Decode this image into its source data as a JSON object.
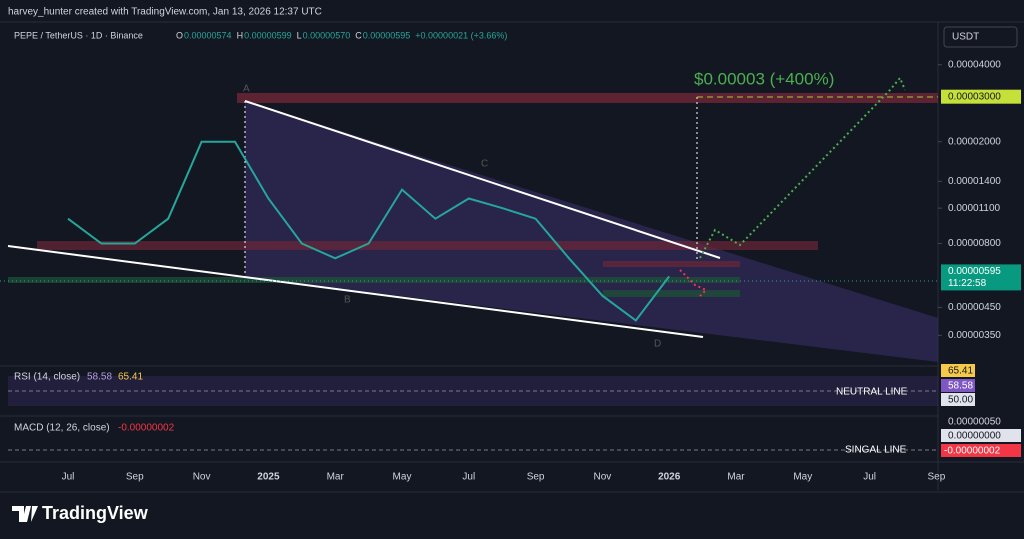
{
  "header": "harvey_hunter created with TradingView.com, Jan 13, 2026 12:37 UTC",
  "symbol": "PEPE / TetherUS · 1D · Binance",
  "ohlc": [
    {
      "key": "O",
      "value": "0.00000574"
    },
    {
      "key": "H",
      "value": "0.00000599"
    },
    {
      "key": "L",
      "value": "0.00000570"
    },
    {
      "key": "C",
      "value": "0.00000595"
    }
  ],
  "change": "+0.00000021 (+3.66%)",
  "currency_button": "USDT",
  "annotations": {
    "target_text": "$0.00003 (+400%)",
    "points": [
      "A",
      "B",
      "C",
      "D"
    ]
  },
  "chart_data": {
    "type": "line",
    "log_scale": true,
    "color": "#26a69a",
    "categories": [
      "Jul",
      null,
      "Sep",
      null,
      "Nov",
      null,
      "2025",
      null,
      "Mar",
      null,
      "May",
      null,
      "Jul",
      null,
      "Sep",
      null,
      "Nov",
      null,
      "2026",
      null,
      "Mar",
      null,
      "May",
      null,
      "Jul",
      null,
      "Sep"
    ],
    "values": [
      1e-05,
      8e-06,
      8e-06,
      1e-05,
      2e-05,
      2e-05,
      1.2e-05,
      8e-06,
      7e-06,
      8e-06,
      1.3e-05,
      1e-05,
      1.2e-05,
      1.1e-05,
      1e-05,
      7e-06,
      5e-06,
      4e-06,
      5.95e-06,
      null,
      null,
      null,
      null,
      null,
      null,
      null,
      null
    ],
    "ylim": [
      2.68e-06,
      5.72e-05
    ],
    "yticks": [
      {
        "value": 4e-05,
        "label": "0.00004000"
      },
      {
        "value": 2e-05,
        "label": "0.00002000"
      },
      {
        "value": 1.4e-05,
        "label": "0.00001400"
      },
      {
        "value": 1.1e-05,
        "label": "0.00001100"
      },
      {
        "value": 8e-06,
        "label": "0.00000800"
      },
      {
        "value": 4.5e-06,
        "label": "0.00000450"
      },
      {
        "value": 3.5e-06,
        "label": "0.00000350"
      }
    ],
    "target_price": {
      "value": 3e-05,
      "label": "0.00003000"
    },
    "last_price": {
      "value": 5.95e-06,
      "label": "0.00000595",
      "countdown": "11:22:58"
    }
  },
  "rsi": {
    "legend": "RSI (14, close)",
    "value": "58.58",
    "ma": "65.41",
    "tags": [
      "65.41",
      "58.58",
      "50.00"
    ],
    "line_label": "NEUTRAL LINE"
  },
  "macd": {
    "legend": "MACD (12, 26, close)",
    "value": "-0.00000002",
    "tags": [
      "0.00000050",
      "0.00000000",
      "-0.00000002"
    ],
    "line_label": "SINGAL LINE"
  },
  "footer": "TradingView"
}
